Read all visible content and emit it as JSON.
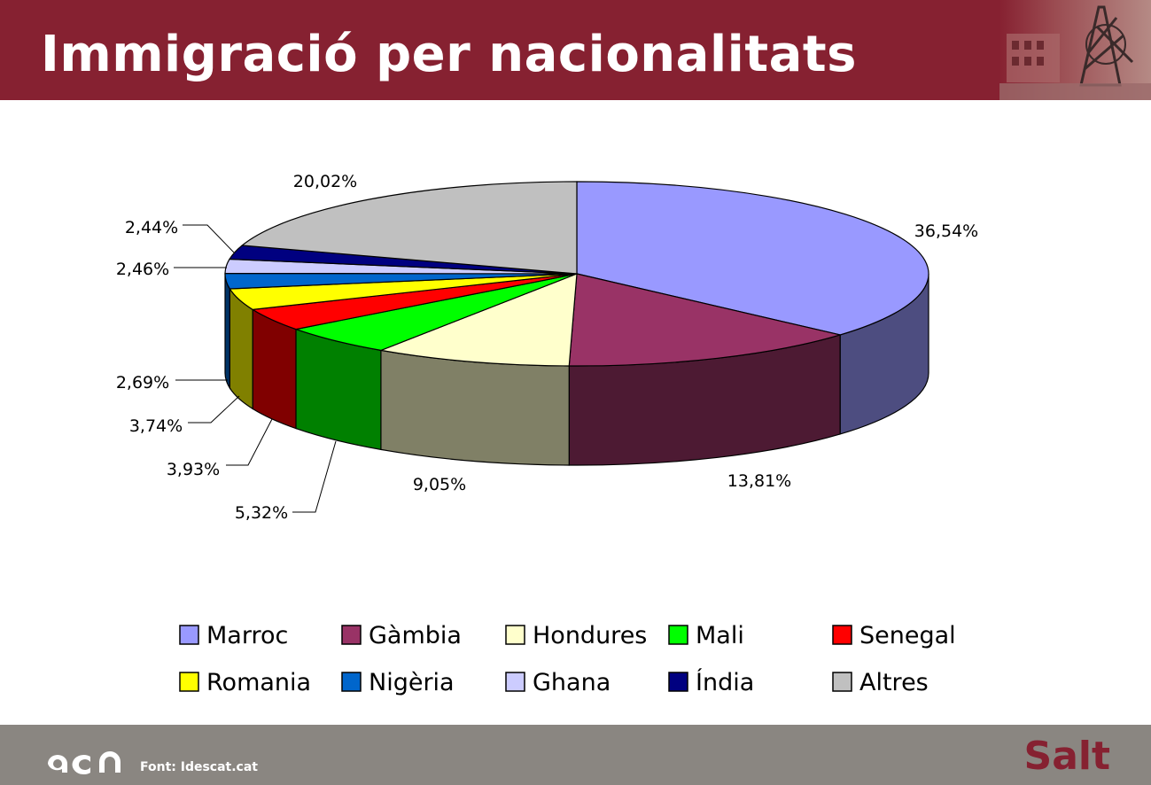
{
  "header": {
    "title": "Immigració per nacionalitats",
    "background": "#862131"
  },
  "footer": {
    "logo": "acn",
    "source": "Font: Idescat.cat",
    "town": "Salt",
    "background": "#8a8681"
  },
  "chart_data": {
    "type": "pie",
    "style": "3d-exploded-depth",
    "legend_position": "bottom",
    "categories": [
      "Marroc",
      "Gàmbia",
      "Hondures",
      "Mali",
      "Senegal",
      "Romania",
      "Nigèria",
      "Ghana",
      "Índia",
      "Altres"
    ],
    "values": [
      36.54,
      13.81,
      9.05,
      5.32,
      3.93,
      3.74,
      2.69,
      2.46,
      2.44,
      20.02
    ],
    "labels": [
      "36,54%",
      "13,81%",
      "9,05%",
      "5,32%",
      "3,93%",
      "3,74%",
      "2,69%",
      "2,46%",
      "2,44%",
      "20,02%"
    ],
    "colors": [
      "#9999ff",
      "#993366",
      "#ffffcc",
      "#00ff00",
      "#ff0000",
      "#ffff00",
      "#0066cc",
      "#ccccff",
      "#000080",
      "#c0c0c0"
    ]
  }
}
